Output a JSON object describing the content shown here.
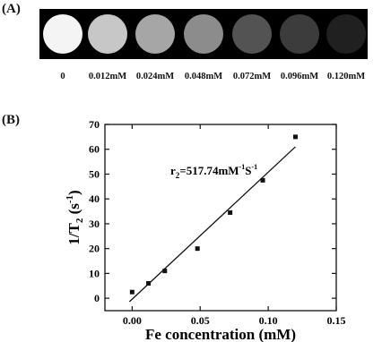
{
  "panel_a": {
    "label": "(A)",
    "phantoms": [
      {
        "concentration": "0",
        "gray": "#f4f4f4"
      },
      {
        "concentration": "0.012mM",
        "gray": "#c7c7c7"
      },
      {
        "concentration": "0.024mM",
        "gray": "#a6a6a6"
      },
      {
        "concentration": "0.048mM",
        "gray": "#8c8c8c"
      },
      {
        "concentration": "0.072mM",
        "gray": "#535353"
      },
      {
        "concentration": "0.096mM",
        "gray": "#3c3c3c"
      },
      {
        "concentration": "0.120mM",
        "gray": "#202020"
      }
    ]
  },
  "panel_b": {
    "label": "(B)"
  },
  "chart_data": {
    "type": "scatter",
    "xlabel": "Fe concentration (mM)",
    "ylabel": "1/T2 (s-1)",
    "xlim": [
      -0.02,
      0.15
    ],
    "ylim": [
      -5,
      70
    ],
    "xticks": [
      0.0,
      0.05,
      0.1,
      0.15
    ],
    "xtick_labels": [
      "0.00",
      "0.05",
      "0.10",
      "0.15"
    ],
    "yticks": [
      0,
      10,
      20,
      30,
      40,
      50,
      60,
      70
    ],
    "ytick_labels": [
      "0",
      "10",
      "20",
      "30",
      "40",
      "50",
      "60",
      "70"
    ],
    "x": [
      0,
      0.012,
      0.024,
      0.048,
      0.072,
      0.096,
      0.12
    ],
    "y": [
      2.5,
      6,
      11,
      20,
      34.5,
      47.5,
      65
    ],
    "fit_line": {
      "x": [
        0,
        0.12
      ],
      "y": [
        -1.2,
        61
      ]
    },
    "annotation": "r2=517.74mM-1S-1",
    "grid": false,
    "legend": "none",
    "marker_color": "#111111"
  }
}
